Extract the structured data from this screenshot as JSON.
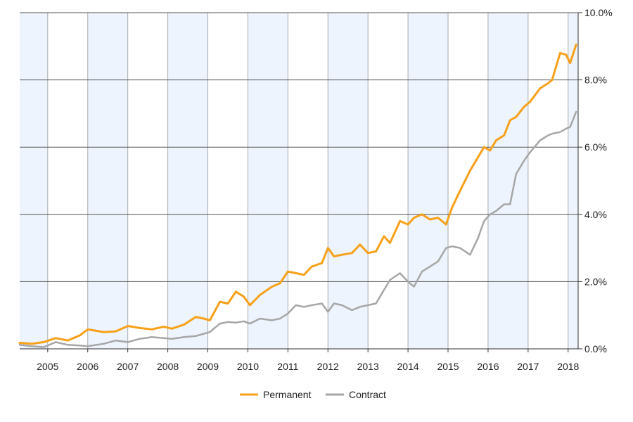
{
  "chart_data": {
    "type": "line",
    "title": "",
    "xlabel": "",
    "ylabel": "",
    "xlim": [
      2004.3,
      2018.25
    ],
    "ylim": [
      0,
      10
    ],
    "grid": true,
    "y_ticks": [
      0,
      2,
      4,
      6,
      8,
      10
    ],
    "y_tick_labels": [
      "0.0%",
      "2.0%",
      "4.0%",
      "6.0%",
      "8.0%",
      "10.0%"
    ],
    "x_ticks": [
      2005,
      2006,
      2007,
      2008,
      2009,
      2010,
      2011,
      2012,
      2013,
      2014,
      2015,
      2016,
      2017,
      2018
    ],
    "x_tick_labels": [
      "2005",
      "2006",
      "2007",
      "2008",
      "2009",
      "2010",
      "2011",
      "2012",
      "2013",
      "2014",
      "2015",
      "2016",
      "2017",
      "2018"
    ],
    "legend_position": "bottom-center",
    "series": [
      {
        "name": "Permanent",
        "color": "#f7a11a",
        "x": [
          2004.3,
          2004.6,
          2004.9,
          2005.2,
          2005.5,
          2005.8,
          2006.0,
          2006.4,
          2006.7,
          2007.0,
          2007.3,
          2007.6,
          2007.9,
          2008.1,
          2008.4,
          2008.7,
          2008.9,
          2009.05,
          2009.3,
          2009.5,
          2009.7,
          2009.9,
          2010.05,
          2010.3,
          2010.6,
          2010.8,
          2011.0,
          2011.2,
          2011.4,
          2011.6,
          2011.85,
          2012.0,
          2012.15,
          2012.35,
          2012.6,
          2012.8,
          2013.0,
          2013.2,
          2013.4,
          2013.55,
          2013.8,
          2014.0,
          2014.15,
          2014.35,
          2014.55,
          2014.75,
          2014.95,
          2015.1,
          2015.3,
          2015.55,
          2015.75,
          2015.9,
          2016.05,
          2016.2,
          2016.4,
          2016.55,
          2016.7,
          2016.9,
          2017.05,
          2017.3,
          2017.5,
          2017.6,
          2017.8,
          2017.95,
          2018.05,
          2018.2
        ],
        "y": [
          0.18,
          0.15,
          0.2,
          0.32,
          0.25,
          0.4,
          0.58,
          0.5,
          0.52,
          0.68,
          0.62,
          0.58,
          0.66,
          0.6,
          0.72,
          0.95,
          0.9,
          0.85,
          1.4,
          1.35,
          1.7,
          1.55,
          1.3,
          1.6,
          1.85,
          1.95,
          2.3,
          2.25,
          2.2,
          2.45,
          2.55,
          3.0,
          2.75,
          2.8,
          2.85,
          3.1,
          2.85,
          2.9,
          3.35,
          3.15,
          3.8,
          3.7,
          3.9,
          4.0,
          3.85,
          3.9,
          3.7,
          4.2,
          4.7,
          5.3,
          5.7,
          6.0,
          5.9,
          6.2,
          6.35,
          6.8,
          6.9,
          7.2,
          7.35,
          7.75,
          7.9,
          8.0,
          8.8,
          8.75,
          8.5,
          9.05
        ]
      },
      {
        "name": "Contract",
        "color": "#a6a6a6",
        "x": [
          2004.3,
          2004.6,
          2004.9,
          2005.2,
          2005.5,
          2005.8,
          2006.0,
          2006.4,
          2006.7,
          2007.0,
          2007.3,
          2007.6,
          2007.9,
          2008.1,
          2008.4,
          2008.7,
          2008.9,
          2009.05,
          2009.3,
          2009.5,
          2009.7,
          2009.9,
          2010.05,
          2010.3,
          2010.6,
          2010.8,
          2011.0,
          2011.2,
          2011.4,
          2011.6,
          2011.85,
          2012.0,
          2012.15,
          2012.35,
          2012.6,
          2012.8,
          2013.0,
          2013.2,
          2013.4,
          2013.55,
          2013.8,
          2014.0,
          2014.15,
          2014.35,
          2014.55,
          2014.75,
          2014.95,
          2015.1,
          2015.3,
          2015.55,
          2015.75,
          2015.9,
          2016.05,
          2016.2,
          2016.4,
          2016.55,
          2016.7,
          2016.9,
          2017.05,
          2017.3,
          2017.5,
          2017.6,
          2017.8,
          2017.95,
          2018.05,
          2018.2
        ],
        "y": [
          0.12,
          0.08,
          0.05,
          0.2,
          0.12,
          0.1,
          0.08,
          0.15,
          0.25,
          0.2,
          0.3,
          0.35,
          0.32,
          0.3,
          0.35,
          0.38,
          0.45,
          0.5,
          0.75,
          0.8,
          0.78,
          0.82,
          0.75,
          0.9,
          0.85,
          0.9,
          1.05,
          1.3,
          1.25,
          1.3,
          1.35,
          1.1,
          1.35,
          1.3,
          1.15,
          1.25,
          1.3,
          1.35,
          1.75,
          2.05,
          2.25,
          2.0,
          1.85,
          2.3,
          2.45,
          2.6,
          3.0,
          3.05,
          3.0,
          2.8,
          3.3,
          3.8,
          4.0,
          4.1,
          4.3,
          4.3,
          5.2,
          5.6,
          5.85,
          6.2,
          6.35,
          6.4,
          6.45,
          6.55,
          6.6,
          7.05
        ]
      }
    ]
  }
}
